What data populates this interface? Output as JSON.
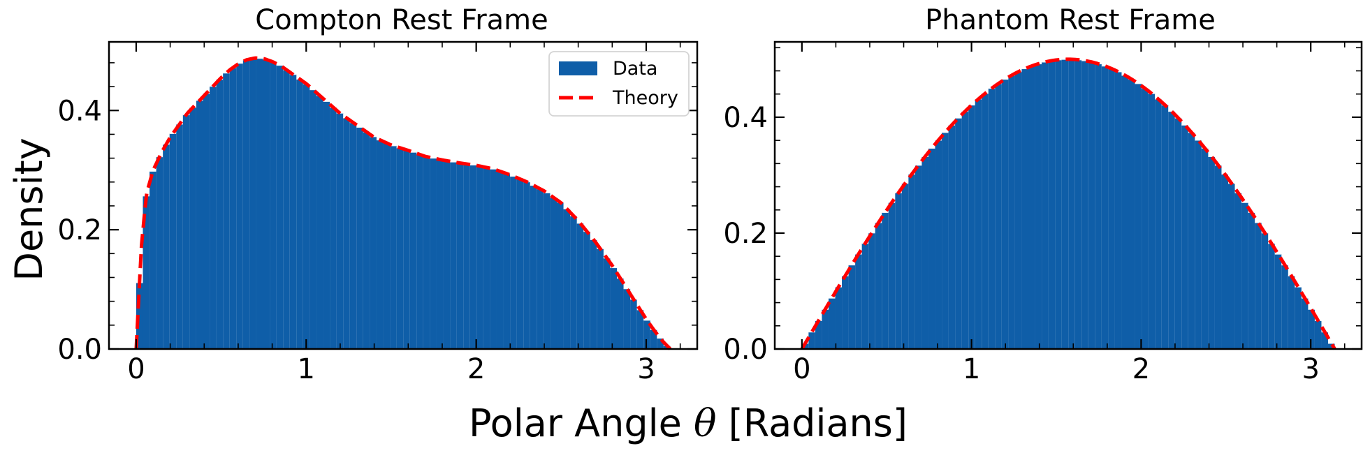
{
  "figure": {
    "xlabel_main": "Polar Angle ",
    "xlabel_symbol": "θ",
    "xlabel_unit": " [Radians]",
    "ylabel": "Density"
  },
  "colors": {
    "data": "#0f5ea8",
    "theory": "#ff0000",
    "bar_edge": "#ffffff"
  },
  "chart_data": [
    {
      "type": "bar",
      "title": "Compton Rest Frame",
      "xlim": [
        -0.16,
        3.3
      ],
      "ylim": [
        0.0,
        0.515
      ],
      "xticks": [
        0,
        1,
        2,
        3
      ],
      "xtick_labels": [
        "0",
        "1",
        "2",
        "3"
      ],
      "yticks": [
        0.0,
        0.2,
        0.4
      ],
      "ytick_labels": [
        "0.0",
        "0.2",
        "0.4"
      ],
      "legend": {
        "placement": "top-right",
        "entries": [
          "Data",
          "Theory"
        ]
      },
      "series": [
        {
          "name": "Data",
          "kind": "histogram",
          "bins": 80,
          "range": [
            0,
            3.1416
          ]
        },
        {
          "name": "Theory",
          "kind": "dashed-line"
        }
      ],
      "curve_points": [
        [
          0.0,
          0.0
        ],
        [
          0.03,
          0.17
        ],
        [
          0.06,
          0.26
        ],
        [
          0.1,
          0.3
        ],
        [
          0.15,
          0.33
        ],
        [
          0.2,
          0.355
        ],
        [
          0.25,
          0.375
        ],
        [
          0.3,
          0.395
        ],
        [
          0.35,
          0.41
        ],
        [
          0.4,
          0.425
        ],
        [
          0.45,
          0.44
        ],
        [
          0.5,
          0.455
        ],
        [
          0.55,
          0.468
        ],
        [
          0.6,
          0.478
        ],
        [
          0.65,
          0.485
        ],
        [
          0.7,
          0.488
        ],
        [
          0.75,
          0.487
        ],
        [
          0.8,
          0.482
        ],
        [
          0.85,
          0.475
        ],
        [
          0.9,
          0.465
        ],
        [
          1.0,
          0.445
        ],
        [
          1.1,
          0.42
        ],
        [
          1.2,
          0.395
        ],
        [
          1.3,
          0.375
        ],
        [
          1.4,
          0.355
        ],
        [
          1.5,
          0.342
        ],
        [
          1.6,
          0.333
        ],
        [
          1.7,
          0.323
        ],
        [
          1.8,
          0.317
        ],
        [
          1.9,
          0.312
        ],
        [
          2.0,
          0.308
        ],
        [
          2.1,
          0.302
        ],
        [
          2.2,
          0.292
        ],
        [
          2.3,
          0.28
        ],
        [
          2.4,
          0.265
        ],
        [
          2.5,
          0.245
        ],
        [
          2.6,
          0.215
        ],
        [
          2.7,
          0.18
        ],
        [
          2.8,
          0.14
        ],
        [
          2.9,
          0.095
        ],
        [
          3.0,
          0.05
        ],
        [
          3.05,
          0.03
        ],
        [
          3.1,
          0.012
        ],
        [
          3.1416,
          0.0
        ]
      ]
    },
    {
      "type": "bar",
      "title": "Phantom Rest Frame",
      "xlim": [
        -0.16,
        3.3
      ],
      "ylim": [
        0.0,
        0.53
      ],
      "xticks": [
        0,
        1,
        2,
        3
      ],
      "xtick_labels": [
        "0",
        "1",
        "2",
        "3"
      ],
      "yticks": [
        0.0,
        0.2,
        0.4
      ],
      "ytick_labels": [
        "0.0",
        "0.2",
        "0.4"
      ],
      "series": [
        {
          "name": "Data",
          "kind": "histogram",
          "bins": 80,
          "range": [
            0,
            3.1416
          ]
        },
        {
          "name": "Theory",
          "kind": "dashed-line",
          "function": "0.5*sin(x)"
        }
      ]
    }
  ]
}
